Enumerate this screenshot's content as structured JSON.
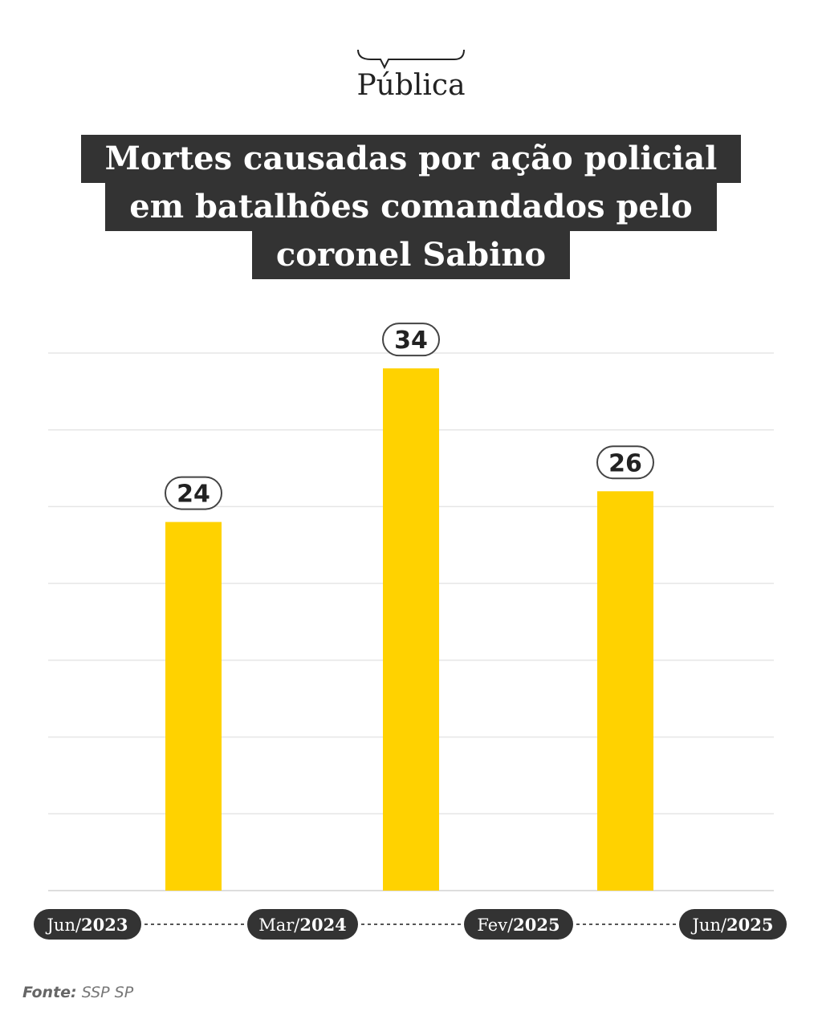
{
  "brand": {
    "logo": "Pública"
  },
  "title_lines": [
    "Mortes causadas por ação policial",
    "em batalhões comandados pelo",
    "coronel Sabino"
  ],
  "source": {
    "label": "Fonte:",
    "value": "SSP SP"
  },
  "colors": {
    "bar": "#FFD200",
    "title_bg": "#333333",
    "pill": "#333333",
    "grid": "#e6e6e6"
  },
  "timeline": [
    {
      "month": "Jun/",
      "year": "2023"
    },
    {
      "month": "Mar/",
      "year": "2024"
    },
    {
      "month": "Fev/",
      "year": "2025"
    },
    {
      "month": "Jun/",
      "year": "2025"
    }
  ],
  "chart_data": {
    "type": "bar",
    "title": "Mortes causadas por ação policial em batalhões comandados pelo coronel Sabino",
    "categories": [
      "Jun/2023 – Mar/2024",
      "Mar/2024 – Fev/2025",
      "Fev/2025 – Jun/2025"
    ],
    "values": [
      24,
      34,
      26
    ],
    "ylim": [
      0,
      35
    ],
    "grid": true,
    "xlabel": "",
    "ylabel": ""
  }
}
